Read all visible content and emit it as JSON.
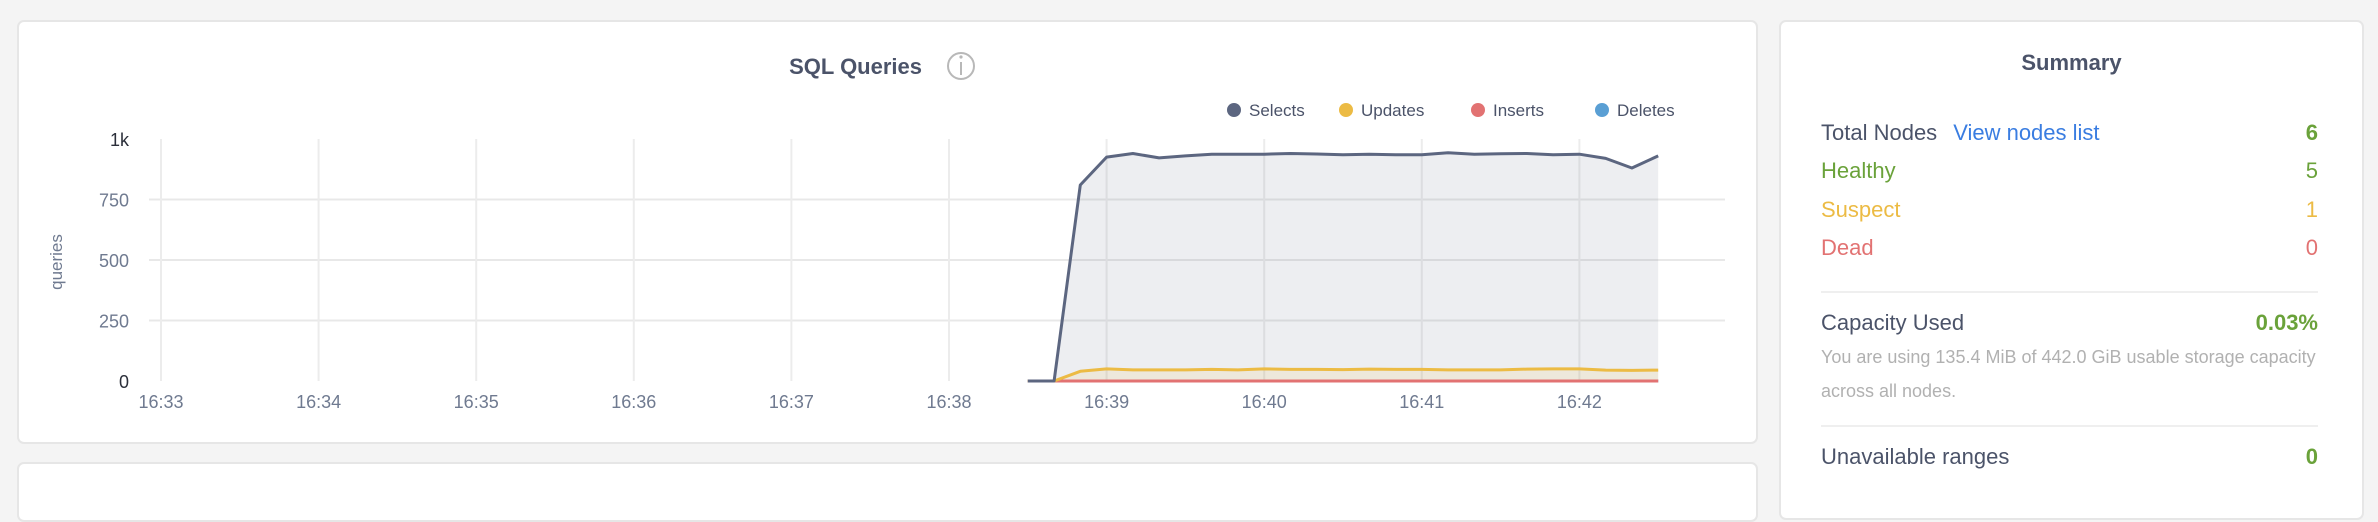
{
  "chart": {
    "title": "SQL Queries",
    "info_icon": "info-circle-icon",
    "colors": {
      "Selects": "#5c6680",
      "Updates": "#ecbb44",
      "Inserts": "#e27272",
      "Deletes": "#5a9fd4"
    },
    "chart_data": {
      "type": "area",
      "title": "SQL Queries",
      "ylabel": "queries",
      "xlabel": "",
      "ylim": [
        0,
        1000
      ],
      "y_ticks": [
        "0",
        "250",
        "500",
        "750",
        "1k"
      ],
      "y_tick_values": [
        0,
        250,
        500,
        750,
        1000
      ],
      "x_ticks": [
        "16:33",
        "16:34",
        "16:35",
        "16:36",
        "16:37",
        "16:38",
        "16:39",
        "16:40",
        "16:41",
        "16:42"
      ],
      "xlim": [
        "16:32:55",
        "16:42:30"
      ],
      "grid": true,
      "legend": "top-right",
      "x": [
        "16:38:30",
        "16:38:40",
        "16:38:50",
        "16:39:00",
        "16:39:10",
        "16:39:20",
        "16:39:30",
        "16:39:40",
        "16:39:50",
        "16:40:00",
        "16:40:10",
        "16:40:20",
        "16:40:30",
        "16:40:40",
        "16:40:50",
        "16:41:00",
        "16:41:10",
        "16:41:20",
        "16:41:30",
        "16:41:40",
        "16:41:50",
        "16:42:00",
        "16:42:10",
        "16:42:20",
        "16:42:30"
      ],
      "series": [
        {
          "name": "Selects",
          "values": [
            0,
            0,
            810,
            925,
            940,
            922,
            930,
            937,
            937,
            937,
            940,
            938,
            935,
            937,
            935,
            935,
            943,
            937,
            939,
            940,
            935,
            937,
            920,
            880,
            930
          ]
        },
        {
          "name": "Updates",
          "values": [
            0,
            0,
            40,
            50,
            46,
            46,
            46,
            48,
            46,
            50,
            48,
            48,
            47,
            49,
            48,
            48,
            46,
            46,
            46,
            49,
            50,
            50,
            45,
            44,
            45
          ]
        },
        {
          "name": "Inserts",
          "values": [
            0,
            0,
            0,
            0,
            0,
            0,
            0,
            0,
            0,
            0,
            0,
            0,
            0,
            0,
            0,
            0,
            0,
            0,
            0,
            0,
            0,
            0,
            0,
            0,
            0
          ]
        },
        {
          "name": "Deletes",
          "values": [
            0,
            0,
            0,
            0,
            0,
            0,
            0,
            0,
            0,
            0,
            0,
            0,
            0,
            0,
            0,
            0,
            0,
            0,
            0,
            0,
            0,
            0,
            0,
            0,
            0
          ]
        }
      ]
    }
  },
  "summary": {
    "title": "Summary",
    "total_nodes_label": "Total Nodes",
    "view_nodes_link": "View nodes list",
    "total_nodes_value": "6",
    "healthy_label": "Healthy",
    "healthy_value": "5",
    "suspect_label": "Suspect",
    "suspect_value": "1",
    "dead_label": "Dead",
    "dead_value": "0",
    "capacity_label": "Capacity Used",
    "capacity_value": "0.03%",
    "capacity_description": "You are using 135.4 MiB of 442.0 GiB usable storage capacity across all nodes.",
    "unavailable_label": "Unavailable ranges",
    "unavailable_value": "0",
    "colors": {
      "green": "#6aa23a",
      "yellow": "#ecbb44",
      "red": "#e27272",
      "link": "#3a7de1",
      "text": "#4b5369"
    }
  }
}
